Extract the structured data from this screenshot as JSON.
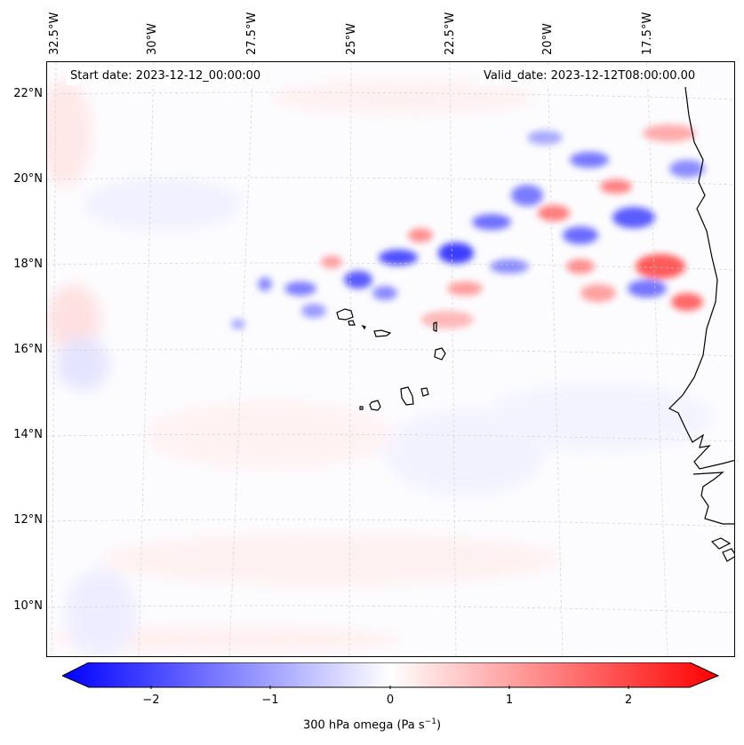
{
  "map": {
    "start_date": "Start date: 2023-12-12_00:00:00",
    "valid_date": "Valid_date: 2023-12-12T08:00:00.00",
    "lon_labels": [
      "32.5°W",
      "30°W",
      "27.5°W",
      "25°W",
      "22.5°W",
      "20°W",
      "17.5°W"
    ],
    "lat_labels": [
      "22°N",
      "20°N",
      "18°N",
      "16°N",
      "14°N",
      "12°N",
      "10°N"
    ],
    "gridlines": true,
    "field": "300 hPa omega",
    "features": [
      "Cape Verde islands coastline",
      "West African coastline"
    ]
  },
  "colorbar": {
    "label": "300 hPa omega (Pa s",
    "label_superscript": "−1",
    "label_close": ")",
    "ticks": [
      "−2",
      "−1",
      "0",
      "1",
      "2"
    ],
    "tick_values": [
      -2,
      -1,
      0,
      1,
      2
    ],
    "range": [
      -2.5,
      2.5
    ],
    "extend": "both",
    "colors": {
      "min": "#0000ff",
      "mid": "#ffffff",
      "max": "#ff0000"
    }
  }
}
